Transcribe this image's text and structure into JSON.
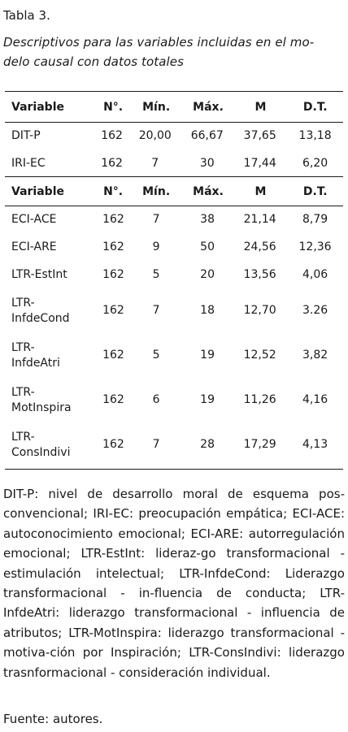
{
  "caption": "Tabla 3.",
  "subtitle": "Descriptivos para las variables incluidas en el mo-delo causal con datos totales",
  "subtitle_line1": "Descriptivos para las variables incluidas en el mo-",
  "subtitle_line2": "delo causal con datos totales",
  "headers": [
    "Variable",
    "N°.",
    "Mín.",
    "Máx.",
    "M",
    "D.T."
  ],
  "group1": [
    [
      "DIT-P",
      "162",
      "20,00",
      "66,67",
      "37,65",
      "13,18"
    ],
    [
      "IRI-EC",
      "162",
      "7",
      "30",
      "17,44",
      "6,20"
    ]
  ],
  "group2": [
    [
      "ECI-ACE",
      "162",
      "7",
      "38",
      "21,14",
      "8,79"
    ],
    [
      "ECI-ARE",
      "162",
      "9",
      "50",
      "24,56",
      "12,36"
    ],
    [
      "LTR-EstInt",
      "162",
      "5",
      "20",
      "13,56",
      "4,06"
    ],
    [
      "LTR-InfdeCond",
      "162",
      "7",
      "18",
      "12,70",
      "3.26"
    ],
    [
      "LTR-InfdeAtri",
      "162",
      "5",
      "19",
      "12,52",
      "3,82"
    ],
    [
      "LTR-MotInspira",
      "162",
      "6",
      "19",
      "11,26",
      "4,16"
    ],
    [
      "LTR-ConsIndivi",
      "162",
      "7",
      "28",
      "17,29",
      "4,13"
    ]
  ],
  "wrapped_labels": {
    "LTR-InfdeCond": [
      "LTR-",
      "InfdeCond"
    ],
    "LTR-InfdeAtri": [
      "LTR-",
      "InfdeAtri"
    ],
    "LTR-MotInspira": [
      "LTR-",
      "MotInspira"
    ],
    "LTR-ConsIndivi": [
      "LTR-",
      "ConsIndivi"
    ]
  },
  "notes": "DIT-P: nivel de desarrollo moral de esquema pos-convencional; IRI-EC: preocupación empática; ECI-ACE: autoconocimiento emocional; ECI-ARE: autorregulación emocional; LTR-EstInt: lideraz-go transformacional - estimulación intelectual; LTR-InfdeCond: Liderazgo transformacional - in-fluencia de conducta; LTR-InfdeAtri: liderazgo transformacional - influencia de atributos; LTR-MotInspira: liderazgo transformacional - motiva-ción por Inspiración; LTR-ConsIndivi: liderazgo trasnformacional - consideración individual.",
  "source": "Fuente: autores."
}
